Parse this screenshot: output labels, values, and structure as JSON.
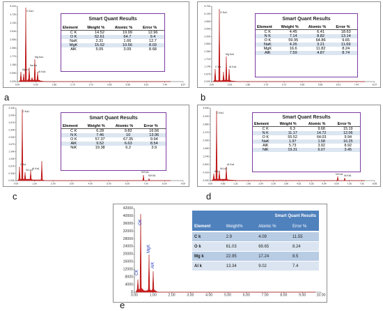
{
  "panels": [
    {
      "id": "a",
      "label": "a",
      "y_ticks": [
        "5.31K",
        "4.72K",
        "4.13K",
        "3.54K",
        "2.95K",
        "2.36K",
        "1.77K",
        "1.18K",
        "0.59K",
        "0.00K"
      ],
      "x_ticks": [
        "0.00",
        "0.93",
        "1.86",
        "2.79",
        "3.72",
        "4.65",
        "5.58",
        "6.51",
        "7.44",
        "8.37"
      ],
      "peak_labels": [
        "C Ka",
        "O Ka1",
        "Na Ka",
        "Mg Ka1",
        "Al Ka1",
        "Mg Lt"
      ],
      "table": {
        "title": "Smart Quant Results",
        "headers": [
          "Element",
          "Weight %",
          "Atomic %",
          "Error %"
        ],
        "rows": [
          [
            "C K",
            "14.52",
            "19.99",
            "12.96"
          ],
          [
            "O K",
            "62.61",
            "64.7",
            "9.4"
          ],
          [
            "NaK",
            "2.31",
            "1.66",
            "12.7"
          ],
          [
            "MgK",
            "15.52",
            "10.56",
            "8.03"
          ],
          [
            "AlK",
            "5.05",
            "3.09",
            "8.68"
          ]
        ]
      }
    },
    {
      "id": "b",
      "label": "b",
      "y_ticks": [
        "5.70K",
        "5.13K",
        "4.56K",
        "3.99K",
        "3.42K",
        "2.85K",
        "2.28K",
        "1.71K",
        "1.14K",
        "0.57K",
        "0.00K"
      ],
      "x_ticks": [
        "0.00",
        "0.93",
        "1.86",
        "2.79",
        "3.72",
        "4.65",
        "5.58",
        "6.51",
        "7.44",
        "8.37"
      ],
      "peak_labels": [
        "C Ka",
        "O Ka1",
        "Mg Ka1",
        "Al Ka1",
        "Mg Lt"
      ],
      "table": {
        "title": "Smart Quant Results",
        "headers": [
          "Element",
          "Weight %",
          "Atomic %",
          "Error %"
        ],
        "rows": [
          [
            "C K",
            "4.45",
            "6.41",
            "18.63"
          ],
          [
            "N K",
            "7.14",
            "8.82",
            "13.14"
          ],
          [
            "O K",
            "59.95",
            "64.86",
            "9.65"
          ],
          [
            "NaK",
            "4.26",
            "3.21",
            "11.69"
          ],
          [
            "MgK",
            "16.6",
            "11.82",
            "8.24"
          ],
          [
            "AlK",
            "7.59",
            "4.87",
            "8.74"
          ]
        ]
      }
    },
    {
      "id": "c",
      "label": "c",
      "y_ticks": [
        "3.34K",
        "3.00K",
        "2.67K",
        "2.34K",
        "2.00K",
        "1.67K",
        "1.34K",
        "1.00K",
        "0.67K",
        "0.33K",
        "0.00K"
      ],
      "x_ticks": [
        "0.00",
        "1.00",
        "2.00",
        "3.00",
        "4.00",
        "5.00",
        "6.00",
        "7.00",
        "8.00",
        "9.00"
      ],
      "peak_labels": [
        "C Ka",
        "O Ka1",
        "Ni La1",
        "Al Ka1",
        "Ni Ka1",
        "Ni Kb1"
      ],
      "table": {
        "title": "Smart Quant Results",
        "headers": [
          "Element",
          "Weight %",
          "Atomic %",
          "Error %"
        ],
        "rows": [
          [
            "C K",
            "6.28",
            "9.82",
            "16.56"
          ],
          [
            "N K",
            "7.46",
            "10",
            "13.96"
          ],
          [
            "O K",
            "57.37",
            "67.35",
            "9.94"
          ],
          [
            "AlK",
            "9.52",
            "6.63",
            "8.54"
          ],
          [
            "NiK",
            "19.38",
            "6.2",
            "3.9"
          ]
        ]
      }
    },
    {
      "id": "d",
      "label": "d",
      "y_ticks": [
        "3.54K",
        "3.32K",
        "2.88K",
        "2.47K",
        "2.06K",
        "1.65K",
        "1.24K",
        "0.82K",
        "0.41K",
        "0.00K"
      ],
      "x_ticks": [
        "0.00",
        "0.66",
        "1.32",
        "1.98",
        "2.64",
        "3.30",
        "3.96",
        "4.62",
        "5.28",
        "5.94",
        "6.60",
        "7.26",
        "7.92",
        "8.58"
      ],
      "peak_labels": [
        "O Ka1",
        "Ni La1",
        "Al Ka1",
        "Al Ll",
        "Ni Ka1",
        "Ni Kb1"
      ],
      "table": {
        "title": "Smart Quant Results",
        "headers": [
          "Element",
          "Weight %",
          "Atomic %",
          "Error %"
        ],
        "rows": [
          [
            "C K",
            "6.3",
            "9.68",
            "15.19"
          ],
          [
            "N K",
            "11.17",
            "14.72",
            "12.06"
          ],
          [
            "O K",
            "55.52",
            "64.03",
            "9.94"
          ],
          [
            "NaK",
            "1.97",
            "1.58",
            "16.25"
          ],
          [
            "AlK",
            "5.73",
            "3.92",
            "8.92"
          ],
          [
            "NiK",
            "19.31",
            "6.07",
            "3.45"
          ]
        ]
      }
    }
  ],
  "panel_e": {
    "label": "e",
    "y_ticks": [
      "42000",
      "40000",
      "36000",
      "32000",
      "28000",
      "24000",
      "20000",
      "16000",
      "12000",
      "8000",
      "4000",
      "0"
    ],
    "x_ticks": [
      "0.00",
      "1.00",
      "2.00",
      "3.00",
      "4.00",
      "5.00",
      "6.00",
      "7.00",
      "8.00",
      "9.00",
      "10.00"
    ],
    "peak_labels": [
      "OK",
      "CK",
      "MgK",
      "AlK"
    ],
    "table": {
      "title": "Smart Quant Results",
      "headers": [
        "Element",
        "Weight%",
        "Atomic %",
        "Error %"
      ],
      "rows": [
        [
          "C k",
          "2.9",
          "4.09",
          "11.55"
        ],
        [
          "O k",
          "61.03",
          "69.65",
          "8.24"
        ],
        [
          "Mg k",
          "22.95",
          "17.24",
          "8.5"
        ],
        [
          "Al k",
          "13.34",
          "9.02",
          "7.4"
        ]
      ]
    }
  },
  "colors": {
    "spectrum": "#cc1f1f",
    "table_border": "#7b3aa0",
    "table_alt_row": "#dce6f1",
    "table_e_header": "#4f81bd"
  }
}
